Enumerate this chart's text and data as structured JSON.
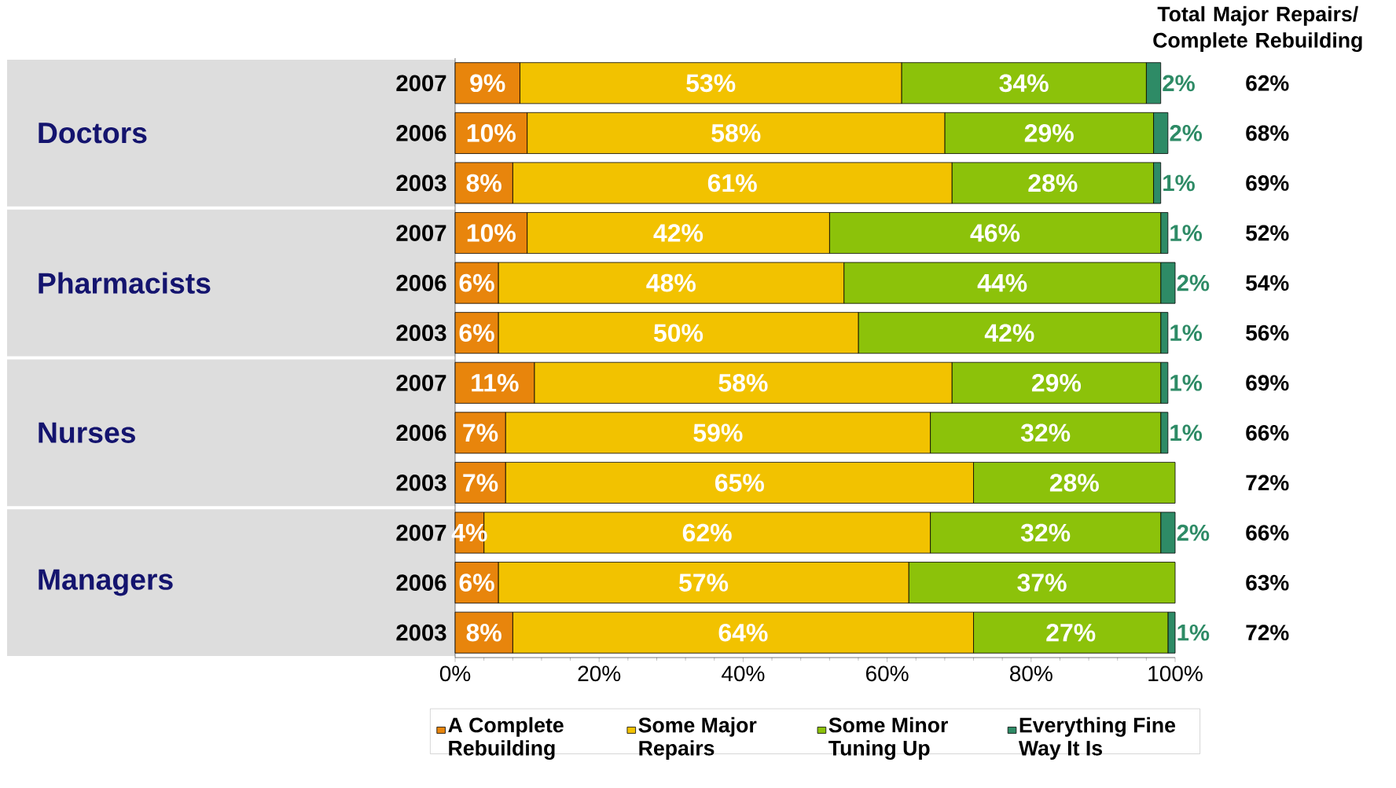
{
  "chart_data": {
    "type": "bar",
    "orientation": "horizontal",
    "stacked": true,
    "categories": [
      "2007",
      "2006",
      "2003",
      "2007",
      "2006",
      "2003",
      "2007",
      "2006",
      "2003",
      "2007",
      "2006",
      "2003"
    ],
    "series": [
      {
        "name": "A Complete Rebuilding",
        "color": "#e8850c",
        "values": [
          9,
          10,
          8,
          10,
          6,
          6,
          11,
          7,
          7,
          4,
          6,
          8
        ],
        "value_labels": [
          "9%",
          "10%",
          "8%",
          "10%",
          "6%",
          "6%",
          "11%",
          "7%",
          "7%",
          "4%",
          "6%",
          "8%"
        ]
      },
      {
        "name": "Some Major Repairs",
        "color": "#f2c200",
        "values": [
          53,
          58,
          61,
          42,
          48,
          50,
          58,
          59,
          65,
          62,
          57,
          64
        ],
        "value_labels": [
          "53%",
          "58%",
          "61%",
          "42%",
          "48%",
          "50%",
          "58%",
          "59%",
          "65%",
          "62%",
          "57%",
          "64%"
        ]
      },
      {
        "name": "Some Minor Tuning Up",
        "color": "#8cc20a",
        "values": [
          34,
          29,
          28,
          46,
          44,
          42,
          29,
          32,
          28,
          32,
          37,
          27
        ],
        "value_labels": [
          "34%",
          "29%",
          "28%",
          "46%",
          "44%",
          "42%",
          "29%",
          "32%",
          "28%",
          "32%",
          "37%",
          "27%"
        ]
      },
      {
        "name": "Everything Fine Way It Is",
        "color": "#2e8b66",
        "values": [
          2,
          2,
          1,
          1,
          2,
          1,
          1,
          1,
          null,
          2,
          null,
          1
        ],
        "value_labels": [
          "2%",
          "2%",
          "1%",
          "1%",
          "2%",
          "1%",
          "1%",
          "1%",
          null,
          "2%",
          null,
          "1%"
        ]
      }
    ],
    "annotations": [
      "Total Major Repairs/ Complete Rebuilding",
      "Doctors",
      "Pharmacists",
      "Nurses",
      "Managers",
      "62%",
      "68%",
      "69%",
      "52%",
      "54%",
      "56%",
      "69%",
      "66%",
      "72%",
      "66%",
      "63%",
      "72%"
    ],
    "xlim": [
      0,
      100
    ],
    "xticks": [
      {
        "value": 0,
        "label": "0%"
      },
      {
        "value": 20,
        "label": "20%"
      },
      {
        "value": 40,
        "label": "40%"
      },
      {
        "value": 60,
        "label": "60%"
      },
      {
        "value": 80,
        "label": "80%"
      },
      {
        "value": 100,
        "label": "100%"
      }
    ],
    "grid": false,
    "legend": "bottom"
  }
}
